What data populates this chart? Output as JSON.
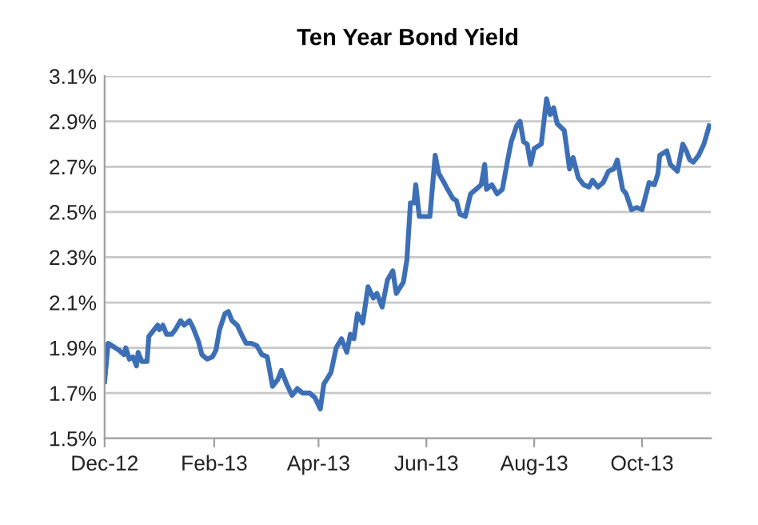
{
  "chart_data": {
    "type": "line",
    "title": "Ten Year Bond Yield",
    "x": [
      "2012-12-01",
      "2012-12-03",
      "2012-12-09",
      "2012-12-12",
      "2012-12-13",
      "2012-12-15",
      "2012-12-17",
      "2012-12-19",
      "2012-12-20",
      "2012-12-22",
      "2012-12-25",
      "2012-12-26",
      "2012-12-29",
      "2012-12-31",
      "2013-01-01",
      "2013-01-03",
      "2013-01-05",
      "2013-01-08",
      "2013-01-10",
      "2013-01-13",
      "2013-01-15",
      "2013-01-18",
      "2013-01-20",
      "2013-01-23",
      "2013-01-25",
      "2013-01-28",
      "2013-01-31",
      "2013-02-02",
      "2013-02-04",
      "2013-02-07",
      "2013-02-09",
      "2013-02-11",
      "2013-02-14",
      "2013-02-17",
      "2013-02-19",
      "2013-02-22",
      "2013-02-25",
      "2013-02-28",
      "2013-03-03",
      "2013-03-06",
      "2013-03-09",
      "2013-03-11",
      "2013-03-14",
      "2013-03-17",
      "2013-03-20",
      "2013-03-23",
      "2013-03-27",
      "2013-03-30",
      "2013-04-02",
      "2013-04-04",
      "2013-04-08",
      "2013-04-11",
      "2013-04-14",
      "2013-04-17",
      "2013-04-19",
      "2013-04-21",
      "2013-04-23",
      "2013-04-26",
      "2013-04-29",
      "2013-05-02",
      "2013-05-04",
      "2013-05-07",
      "2013-05-10",
      "2013-05-13",
      "2013-05-15",
      "2013-05-19",
      "2013-05-21",
      "2013-05-23",
      "2013-05-25",
      "2013-05-26",
      "2013-05-28",
      "2013-05-31",
      "2013-06-03",
      "2013-06-06",
      "2013-06-08",
      "2013-06-11",
      "2013-06-13",
      "2013-06-16",
      "2013-06-18",
      "2013-06-20",
      "2013-06-23",
      "2013-06-26",
      "2013-06-29",
      "2013-07-02",
      "2013-07-04",
      "2013-07-05",
      "2013-07-08",
      "2013-07-11",
      "2013-07-14",
      "2013-07-17",
      "2013-07-19",
      "2013-07-22",
      "2013-07-24",
      "2013-07-26",
      "2013-07-28",
      "2013-07-30",
      "2013-08-01",
      "2013-08-05",
      "2013-08-08",
      "2013-08-10",
      "2013-08-12",
      "2013-08-14",
      "2013-08-18",
      "2013-08-21",
      "2013-08-23",
      "2013-08-26",
      "2013-08-29",
      "2013-09-01",
      "2013-09-03",
      "2013-09-06",
      "2013-09-09",
      "2013-09-12",
      "2013-09-15",
      "2013-09-17",
      "2013-09-20",
      "2013-09-22",
      "2013-09-25",
      "2013-09-28",
      "2013-10-01",
      "2013-10-03",
      "2013-10-05",
      "2013-10-08",
      "2013-10-10",
      "2013-10-11",
      "2013-10-15",
      "2013-10-17",
      "2013-10-21",
      "2013-10-24",
      "2013-10-26",
      "2013-10-28",
      "2013-10-30",
      "2013-11-02",
      "2013-11-05",
      "2013-11-08"
    ],
    "series": [
      {
        "color": "#3d6fb6",
        "values": [
          1.75,
          1.92,
          1.89,
          1.87,
          1.9,
          1.85,
          1.86,
          1.82,
          1.88,
          1.84,
          1.84,
          1.95,
          1.98,
          2.0,
          1.98,
          2.0,
          1.96,
          1.96,
          1.98,
          2.02,
          2.0,
          2.02,
          1.99,
          1.93,
          1.87,
          1.85,
          1.86,
          1.89,
          1.98,
          2.05,
          2.06,
          2.02,
          2.0,
          1.95,
          1.92,
          1.92,
          1.91,
          1.87,
          1.86,
          1.73,
          1.76,
          1.8,
          1.74,
          1.69,
          1.72,
          1.7,
          1.7,
          1.68,
          1.63,
          1.74,
          1.79,
          1.9,
          1.94,
          1.88,
          1.96,
          1.94,
          2.05,
          2.01,
          2.17,
          2.12,
          2.14,
          2.08,
          2.2,
          2.24,
          2.14,
          2.19,
          2.29,
          2.54,
          2.54,
          2.62,
          2.48,
          2.48,
          2.48,
          2.75,
          2.67,
          2.63,
          2.6,
          2.56,
          2.55,
          2.49,
          2.48,
          2.58,
          2.6,
          2.62,
          2.71,
          2.6,
          2.62,
          2.58,
          2.6,
          2.73,
          2.81,
          2.88,
          2.9,
          2.81,
          2.8,
          2.71,
          2.78,
          2.8,
          3.0,
          2.93,
          2.96,
          2.89,
          2.86,
          2.69,
          2.74,
          2.65,
          2.62,
          2.61,
          2.64,
          2.61,
          2.63,
          2.68,
          2.69,
          2.73,
          2.6,
          2.58,
          2.51,
          2.52,
          2.51,
          2.57,
          2.63,
          2.62,
          2.67,
          2.75,
          2.77,
          2.71,
          2.68,
          2.8,
          2.77,
          2.73,
          2.72,
          2.75,
          2.8,
          2.88
        ]
      }
    ],
    "xlim": [
      "2012-12-01",
      "2013-11-09"
    ],
    "xticks": [
      {
        "value": "2012-12-01",
        "label": "Dec-12"
      },
      {
        "value": "2013-02-01",
        "label": "Feb-13"
      },
      {
        "value": "2013-04-01",
        "label": "Apr-13"
      },
      {
        "value": "2013-06-01",
        "label": "Jun-13"
      },
      {
        "value": "2013-08-01",
        "label": "Aug-13"
      },
      {
        "value": "2013-10-01",
        "label": "Oct-13"
      }
    ],
    "ylim": [
      1.5,
      3.1
    ],
    "yticks": [
      {
        "value": 1.5,
        "label": "1.5%"
      },
      {
        "value": 1.7,
        "label": "1.7%"
      },
      {
        "value": 1.9,
        "label": "1.9%"
      },
      {
        "value": 2.1,
        "label": "2.1%"
      },
      {
        "value": 2.3,
        "label": "2.3%"
      },
      {
        "value": 2.5,
        "label": "2.5%"
      },
      {
        "value": 2.7,
        "label": "2.7%"
      },
      {
        "value": 2.9,
        "label": "2.9%"
      },
      {
        "value": 3.1,
        "label": "3.1%"
      }
    ],
    "grid": "y",
    "marker": "none",
    "line_style": "solid",
    "legend": false
  }
}
